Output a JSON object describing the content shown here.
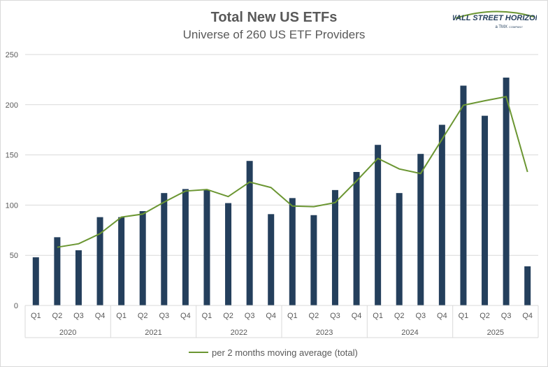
{
  "title": "Total New US ETFs",
  "subtitle": "Universe of 260 US ETF Providers",
  "logo": {
    "line1": "WALL STREET HORIZON",
    "line2": "a TMX",
    "line3": "COMPANY"
  },
  "colors": {
    "bar": "#243f5c",
    "line": "#6b9632",
    "grid": "#d9d9d9",
    "text": "#595959"
  },
  "chart_data": {
    "type": "bar",
    "years": [
      "2020",
      "2021",
      "2022",
      "2023",
      "2024",
      "2025"
    ],
    "quarters": [
      "Q1",
      "Q2",
      "Q3",
      "Q4"
    ],
    "categories": [
      "2020 Q1",
      "2020 Q2",
      "2020 Q3",
      "2020 Q4",
      "2021 Q1",
      "2021 Q2",
      "2021 Q3",
      "2021 Q4",
      "2022 Q1",
      "2022 Q2",
      "2022 Q3",
      "2022 Q4",
      "2023 Q1",
      "2023 Q2",
      "2023 Q3",
      "2023 Q4",
      "2024 Q1",
      "2024 Q2",
      "2024 Q3",
      "2024 Q4",
      "2025 Q1",
      "2025 Q2",
      "2025 Q3",
      "2025 Q4"
    ],
    "values": [
      48,
      68,
      55,
      88,
      88,
      94,
      112,
      116,
      115,
      102,
      144,
      91,
      107,
      90,
      115,
      133,
      160,
      112,
      151,
      180,
      219,
      189,
      227,
      39
    ],
    "moving_average": {
      "name": "per 2 months moving average (total)",
      "values": [
        null,
        58,
        61.5,
        71.5,
        88,
        91,
        103,
        114,
        115.5,
        108.5,
        123,
        117.5,
        99,
        98.5,
        102.5,
        124,
        146.5,
        136,
        131.5,
        165.5,
        199.5,
        204,
        208,
        133
      ]
    },
    "ylim": [
      0,
      250
    ],
    "yticks": [
      0,
      50,
      100,
      150,
      200,
      250
    ],
    "grid": true,
    "legend": "bottom"
  }
}
